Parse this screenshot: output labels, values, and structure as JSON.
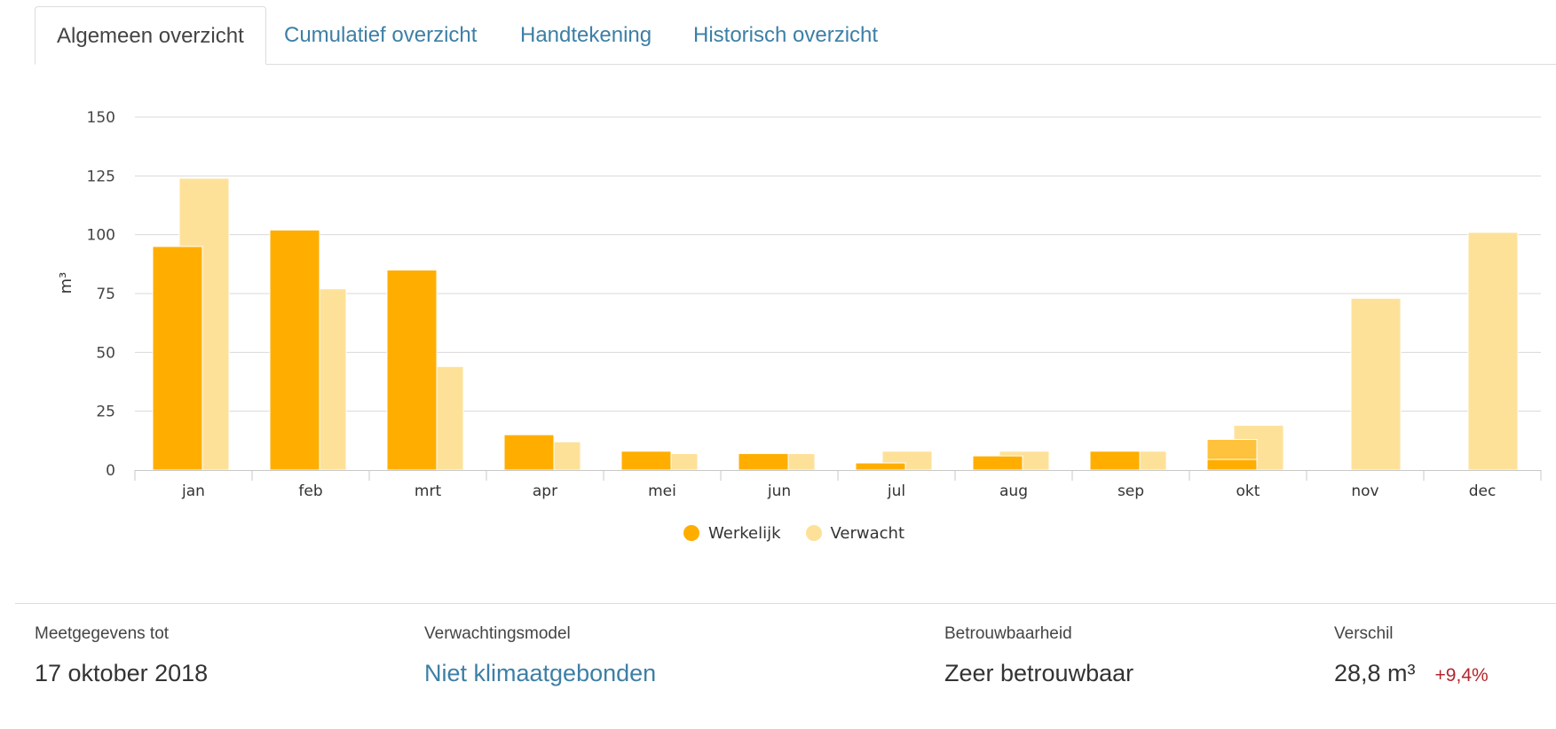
{
  "tabs": [
    {
      "label": "Algemeen overzicht",
      "active": true
    },
    {
      "label": "Cumulatief overzicht",
      "active": false
    },
    {
      "label": "Handtekening",
      "active": false
    },
    {
      "label": "Historisch overzicht",
      "active": false
    }
  ],
  "chart_data": {
    "type": "bar",
    "ylabel": "m³",
    "ylim": [
      0,
      150
    ],
    "yticks": [
      0,
      25,
      50,
      75,
      100,
      125,
      150
    ],
    "categories": [
      "jan",
      "feb",
      "mrt",
      "apr",
      "mei",
      "jun",
      "jul",
      "aug",
      "sep",
      "okt",
      "nov",
      "dec"
    ],
    "grid": true,
    "legend_position": "bottom-center",
    "series": [
      {
        "name": "Werkelijk",
        "color": "#ffae00",
        "values": [
          95,
          102,
          85,
          15,
          8,
          7,
          3,
          6,
          8,
          13,
          null,
          null
        ],
        "partial": {
          "okt": 4.5
        }
      },
      {
        "name": "Verwacht",
        "color": "#fee199",
        "values": [
          124,
          77,
          44,
          12,
          7,
          7,
          8,
          8,
          8,
          19,
          73,
          101
        ]
      }
    ]
  },
  "info": {
    "meetgegevens": {
      "label": "Meetgegevens tot",
      "value": "17 oktober 2018"
    },
    "model": {
      "label": "Verwachtingsmodel",
      "value": "Niet klimaatgebonden"
    },
    "betrouwbaarheid": {
      "label": "Betrouwbaarheid",
      "value": "Zeer betrouwbaar"
    },
    "verschil": {
      "label": "Verschil",
      "value": "28,8 m³",
      "percent": "+9,4%"
    }
  }
}
